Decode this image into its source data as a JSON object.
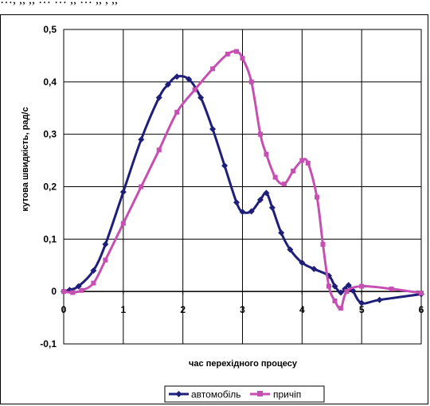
{
  "top_text": "…, ,, ,, … … ,, … ,, , ,,",
  "chart_data": {
    "type": "line",
    "title": "",
    "xlabel": "час перехідного процесу",
    "ylabel": "кутова швидкість, рад/с",
    "xlim": [
      0,
      6
    ],
    "ylim": [
      -0.1,
      0.5
    ],
    "x_ticks": [
      "0",
      "1",
      "2",
      "3",
      "4",
      "5",
      "6"
    ],
    "y_ticks": [
      "-0,1",
      "0",
      "0,1",
      "0,2",
      "0,3",
      "0,4",
      "0,5"
    ],
    "grid": true,
    "legend_position": "bottom",
    "series": [
      {
        "name": "автомобіль",
        "color": "#1f1f7a",
        "marker": "diamond",
        "x": [
          0,
          0.1,
          0.25,
          0.5,
          0.7,
          1.0,
          1.3,
          1.6,
          1.75,
          1.9,
          2.1,
          2.3,
          2.5,
          2.7,
          2.9,
          3.0,
          3.15,
          3.3,
          3.4,
          3.5,
          3.65,
          3.8,
          4.0,
          4.2,
          4.45,
          4.55,
          4.65,
          4.72,
          4.78,
          4.85,
          5.0,
          5.3,
          6.0
        ],
        "y": [
          0.0,
          0.003,
          0.01,
          0.04,
          0.09,
          0.19,
          0.29,
          0.37,
          0.395,
          0.41,
          0.405,
          0.37,
          0.31,
          0.24,
          0.17,
          0.152,
          0.153,
          0.175,
          0.188,
          0.16,
          0.112,
          0.08,
          0.055,
          0.043,
          0.03,
          0.01,
          -0.002,
          0.005,
          0.012,
          0.002,
          -0.022,
          -0.016,
          -0.005
        ]
      },
      {
        "name": "причіп",
        "color": "#c64fb2",
        "marker": "square",
        "x": [
          0,
          0.15,
          0.3,
          0.5,
          0.7,
          1.0,
          1.3,
          1.6,
          1.9,
          2.2,
          2.5,
          2.75,
          2.9,
          3.0,
          3.15,
          3.3,
          3.4,
          3.55,
          3.7,
          3.85,
          4.0,
          4.1,
          4.25,
          4.35,
          4.45,
          4.55,
          4.65,
          4.75,
          5.0,
          5.5,
          6.0
        ],
        "y": [
          0.0,
          -0.002,
          0.002,
          0.016,
          0.06,
          0.13,
          0.2,
          0.27,
          0.342,
          0.385,
          0.425,
          0.453,
          0.458,
          0.445,
          0.4,
          0.3,
          0.262,
          0.218,
          0.205,
          0.23,
          0.25,
          0.245,
          0.18,
          0.09,
          0.01,
          -0.018,
          -0.032,
          0.0,
          0.01,
          0.005,
          -0.003
        ]
      }
    ]
  }
}
